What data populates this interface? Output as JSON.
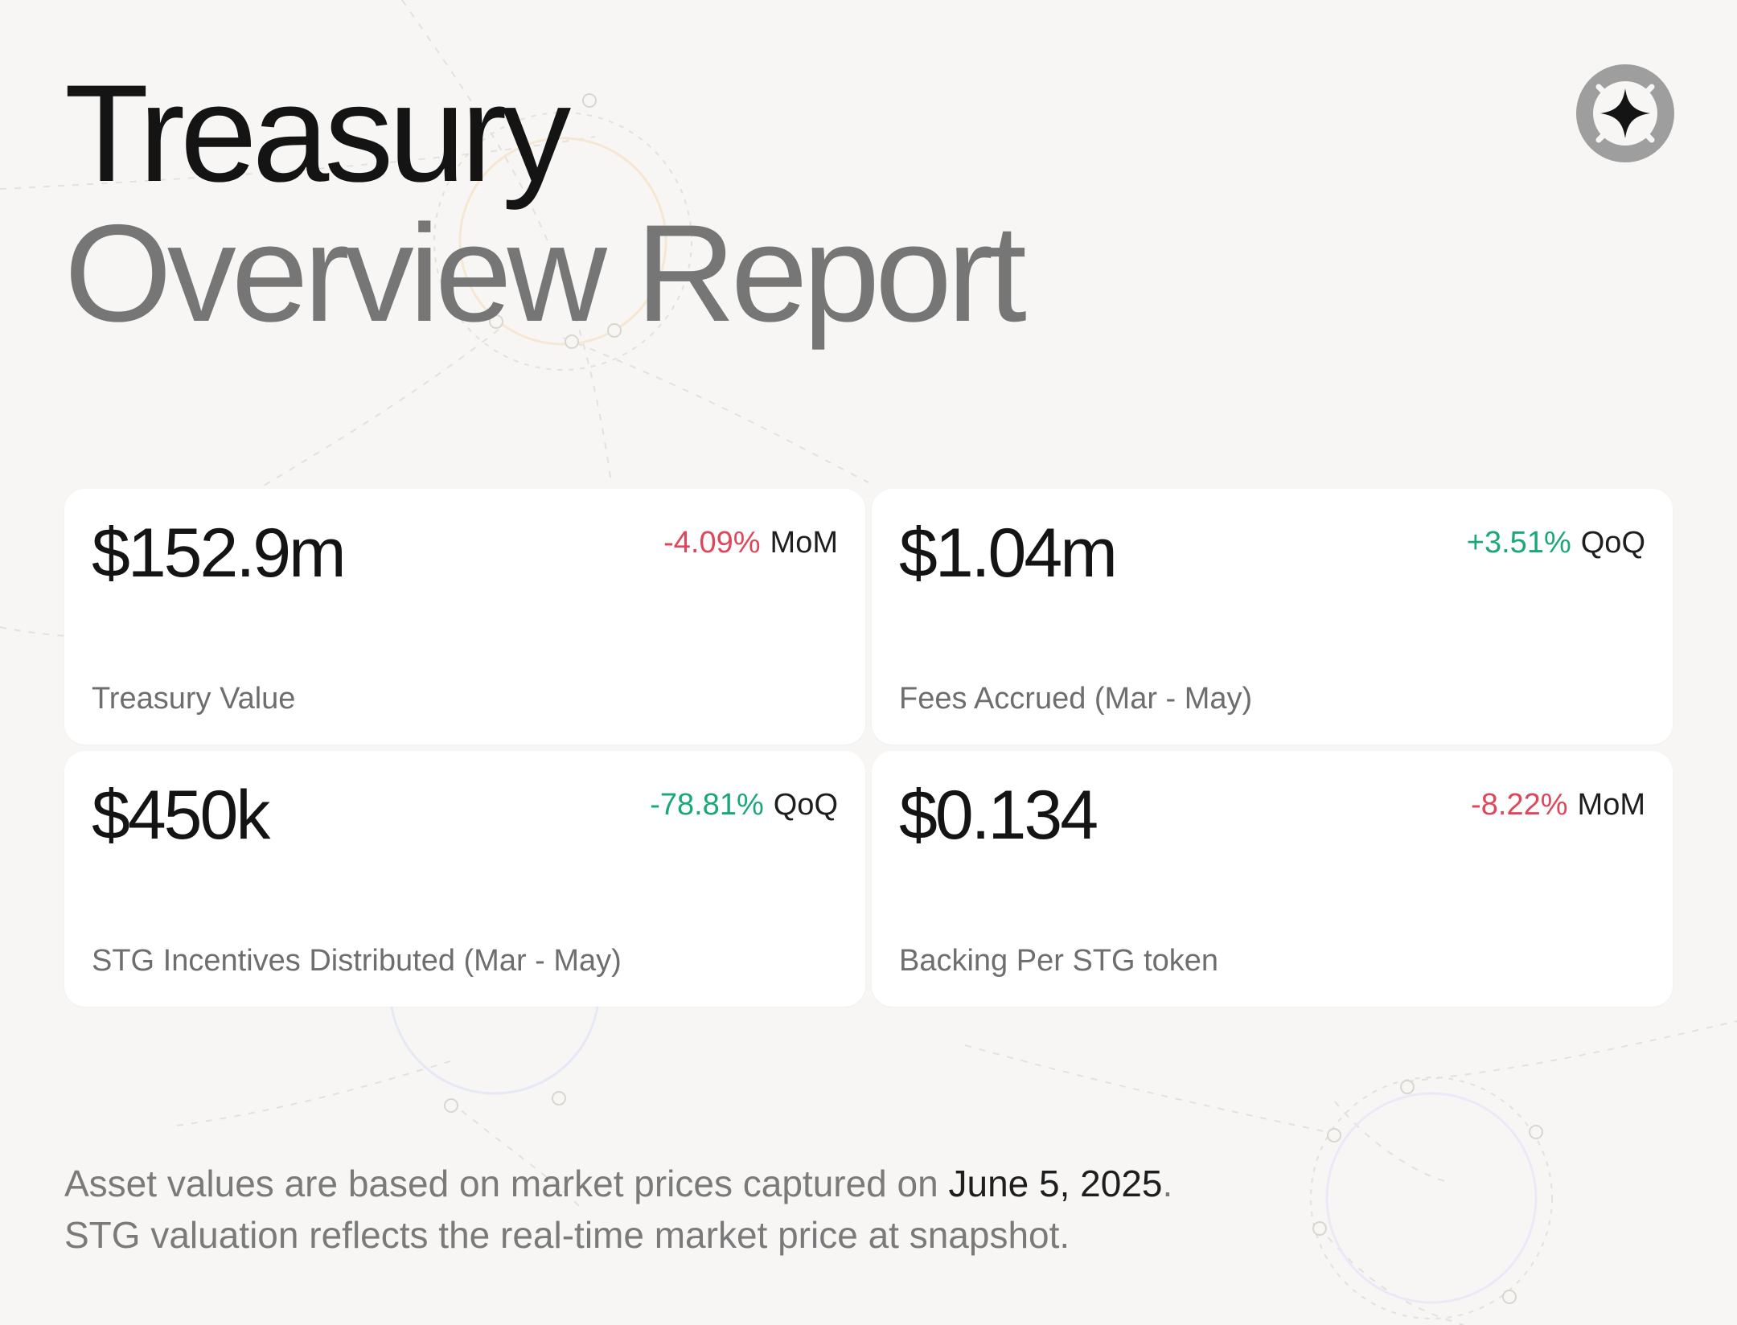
{
  "title": {
    "line1": "Treasury",
    "line2": "Overview Report"
  },
  "logo": {
    "icon": "four-point-star-icon"
  },
  "cards": [
    {
      "value": "$152.9m",
      "change": "-4.09%",
      "period": "MoM",
      "trend": "negative",
      "label": "Treasury Value"
    },
    {
      "value": "$1.04m",
      "change": "+3.51%",
      "period": "QoQ",
      "trend": "positive",
      "label": "Fees Accrued (Mar - May)"
    },
    {
      "value": "$450k",
      "change": "-78.81%",
      "period": "QoQ",
      "trend": "positive",
      "label": "STG Incentives Distributed (Mar - May)"
    },
    {
      "value": "$0.134",
      "change": "-8.22%",
      "period": "MoM",
      "trend": "negative",
      "label": "Backing Per STG token"
    }
  ],
  "footnote": {
    "line1_prefix": "Asset values are based on market prices captured on ",
    "date": "June 5, 2025",
    "line1_suffix": ".",
    "line2": "STG valuation reflects the real-time market price at snapshot."
  },
  "colors": {
    "background": "#f7f6f4",
    "negative": "#e0465a",
    "positive": "#1aa877",
    "title_primary": "#141414",
    "title_secondary": "#767676"
  }
}
